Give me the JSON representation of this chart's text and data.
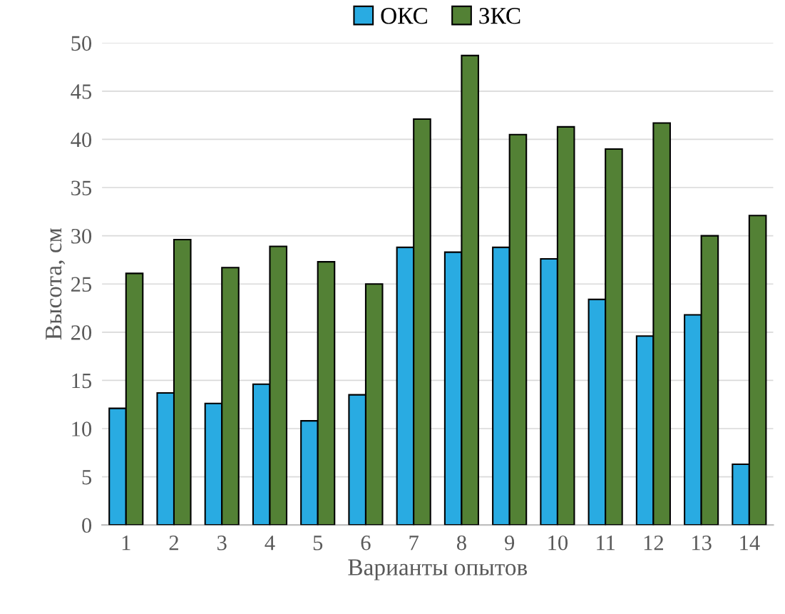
{
  "chart_data": {
    "type": "bar",
    "xlabel": "Варианты опытов",
    "ylabel": "Высота, см",
    "categories": [
      "1",
      "2",
      "3",
      "4",
      "5",
      "6",
      "7",
      "8",
      "9",
      "10",
      "11",
      "12",
      "13",
      "14"
    ],
    "series": [
      {
        "name": "ОКС",
        "color": "#29abe2",
        "values": [
          12.1,
          13.7,
          12.6,
          14.6,
          10.8,
          13.5,
          28.8,
          28.3,
          28.8,
          27.6,
          23.4,
          19.6,
          21.8,
          6.3
        ]
      },
      {
        "name": "ЗКС",
        "color": "#538135",
        "values": [
          26.1,
          29.6,
          26.7,
          28.9,
          27.3,
          25.0,
          42.1,
          48.7,
          40.5,
          41.3,
          39.0,
          41.7,
          30.0,
          32.1
        ]
      }
    ],
    "ylim": [
      0,
      50
    ],
    "yticks": [
      0,
      5,
      10,
      15,
      20,
      25,
      30,
      35,
      40,
      45,
      50
    ],
    "grid": "y",
    "legend": "top"
  }
}
